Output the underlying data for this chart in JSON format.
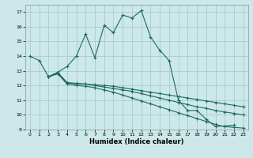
{
  "xlabel": "Humidex (Indice chaleur)",
  "bg_color": "#cce8e8",
  "grid_color": "#aacccc",
  "line_color": "#1e6b5e",
  "xlim": [
    -0.5,
    23.5
  ],
  "ylim": [
    9,
    17.5
  ],
  "xticks": [
    0,
    1,
    2,
    3,
    4,
    5,
    6,
    7,
    8,
    9,
    10,
    11,
    12,
    13,
    14,
    15,
    16,
    17,
    18,
    19,
    20,
    21,
    22,
    23
  ],
  "yticks": [
    9,
    10,
    11,
    12,
    13,
    14,
    15,
    16,
    17
  ],
  "series": [
    {
      "x": [
        0,
        1,
        2,
        3,
        4,
        5,
        6,
        7,
        8,
        9,
        10,
        11,
        12,
        13,
        14,
        15,
        16,
        17,
        18,
        19,
        20,
        22
      ],
      "y": [
        14.0,
        13.7,
        12.6,
        12.9,
        13.3,
        14.0,
        15.5,
        13.9,
        16.1,
        15.6,
        16.8,
        16.6,
        17.1,
        15.3,
        14.4,
        13.7,
        11.0,
        10.3,
        10.3,
        9.7,
        9.2,
        9.3
      ]
    },
    {
      "x": [
        2,
        3,
        4,
        5,
        6,
        7,
        8,
        9,
        10,
        11,
        12,
        13,
        14,
        15,
        16,
        17,
        18,
        19,
        20,
        21,
        22,
        23
      ],
      "y": [
        12.6,
        12.8,
        12.2,
        12.15,
        12.1,
        12.05,
        12.0,
        11.95,
        11.85,
        11.75,
        11.65,
        11.55,
        11.45,
        11.35,
        11.25,
        11.15,
        11.05,
        10.95,
        10.85,
        10.75,
        10.65,
        10.55
      ]
    },
    {
      "x": [
        2,
        3,
        4,
        5,
        6,
        7,
        8,
        9,
        10,
        11,
        12,
        13,
        14,
        15,
        16,
        17,
        18,
        19,
        20,
        21,
        22,
        23
      ],
      "y": [
        12.6,
        12.8,
        12.1,
        12.0,
        11.95,
        11.85,
        11.7,
        11.55,
        11.35,
        11.15,
        10.95,
        10.75,
        10.55,
        10.35,
        10.15,
        9.95,
        9.75,
        9.55,
        9.35,
        9.2,
        9.15,
        9.1
      ]
    },
    {
      "x": [
        2,
        3,
        4,
        5,
        6,
        7,
        8,
        9,
        10,
        11,
        12,
        13,
        14,
        15,
        16,
        17,
        18,
        19,
        20,
        21,
        22,
        23
      ],
      "y": [
        12.6,
        12.9,
        12.2,
        12.1,
        12.1,
        12.0,
        11.9,
        11.8,
        11.7,
        11.6,
        11.45,
        11.3,
        11.15,
        11.0,
        10.85,
        10.7,
        10.55,
        10.45,
        10.3,
        10.2,
        10.1,
        10.0
      ]
    }
  ]
}
